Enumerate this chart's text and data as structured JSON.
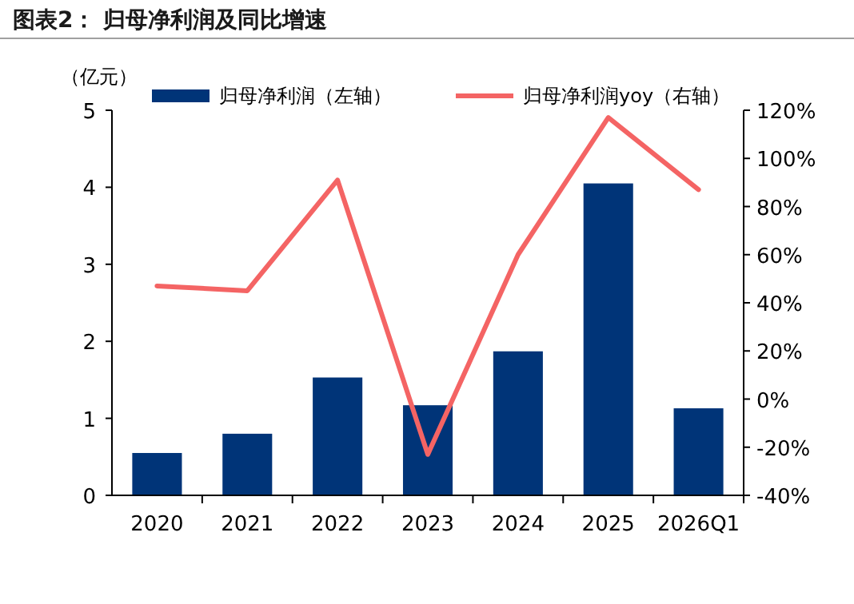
{
  "chart_data": {
    "type": "bar",
    "title": "图表2：  归母净利润及同比增速",
    "ylabel": "（亿元）",
    "categories": [
      "2020",
      "2021",
      "2022",
      "2023",
      "2024",
      "2025",
      "2026Q1"
    ],
    "series": [
      {
        "name": "归母净利润（左轴）",
        "color": "#003478",
        "values": [
          0.55,
          0.8,
          1.53,
          1.17,
          1.87,
          4.05,
          1.13
        ]
      },
      {
        "name": "归母净利润yoy（右轴）",
        "type": "line",
        "axis": "y2",
        "color": "#f46464",
        "values": [
          47,
          45,
          91,
          -23,
          60,
          117,
          87
        ]
      }
    ],
    "ylim": [
      0,
      5
    ],
    "yticks": [
      0,
      1,
      2,
      3,
      4,
      5
    ],
    "y2lim": [
      -40,
      120
    ],
    "y2ticks": [
      {
        "value": -40,
        "label": "-40%"
      },
      {
        "value": -20,
        "label": "-20%"
      },
      {
        "value": 0,
        "label": "0%"
      },
      {
        "value": 20,
        "label": "20%"
      },
      {
        "value": 40,
        "label": "40%"
      },
      {
        "value": 60,
        "label": "60%"
      },
      {
        "value": 80,
        "label": "80%"
      },
      {
        "value": 100,
        "label": "100%"
      },
      {
        "value": 120,
        "label": "120%"
      }
    ],
    "legend": "top",
    "grid": false
  }
}
